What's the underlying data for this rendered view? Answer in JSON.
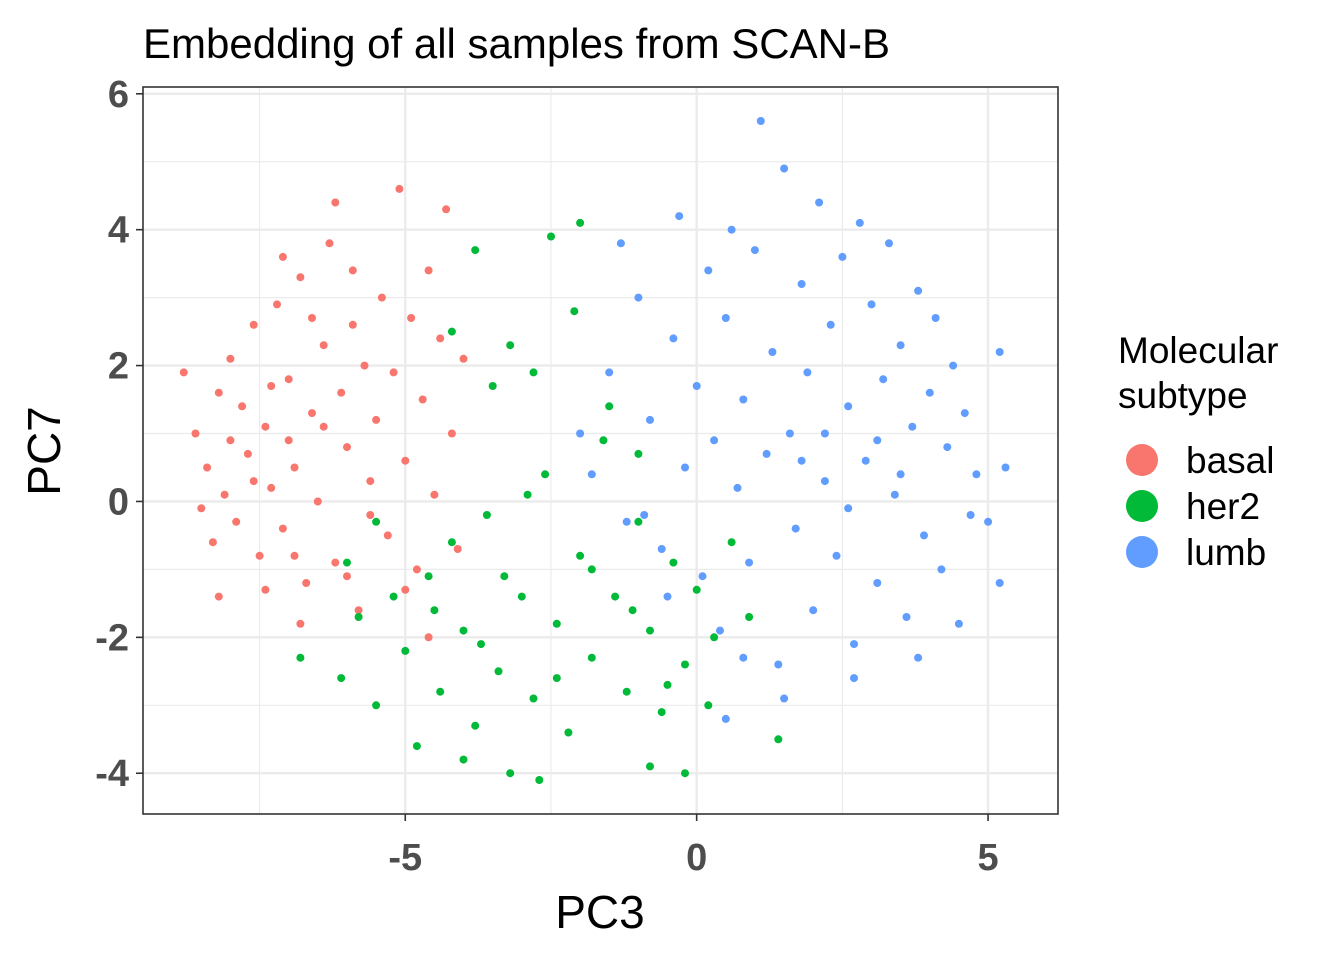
{
  "chart_data": {
    "type": "scatter",
    "title": "Embedding of all samples from SCAN-B",
    "xlabel": "PC3",
    "ylabel": "PC7",
    "xlim": [
      -9.5,
      6.2
    ],
    "ylim": [
      -4.6,
      6.1
    ],
    "x_ticks": [
      -5,
      0,
      5
    ],
    "x_tick_labels": [
      "-5",
      "0",
      "5"
    ],
    "y_ticks": [
      -4,
      -2,
      0,
      2,
      4,
      6
    ],
    "y_tick_labels": [
      "-4",
      "-2",
      "0",
      "2",
      "4",
      "6"
    ],
    "grid": true,
    "legend": {
      "title_lines": [
        "Molecular",
        "subtype"
      ],
      "placement": "right"
    },
    "series": [
      {
        "name": "basal",
        "color": "#F8766D",
        "points": [
          [
            -8.8,
            1.9
          ],
          [
            -8.6,
            1.0
          ],
          [
            -8.4,
            0.5
          ],
          [
            -8.3,
            -0.6
          ],
          [
            -8.2,
            1.6
          ],
          [
            -8.1,
            0.1
          ],
          [
            -8.0,
            2.1
          ],
          [
            -7.9,
            -0.3
          ],
          [
            -7.8,
            1.4
          ],
          [
            -7.7,
            0.7
          ],
          [
            -7.6,
            2.6
          ],
          [
            -7.5,
            -0.8
          ],
          [
            -7.4,
            1.1
          ],
          [
            -7.3,
            0.2
          ],
          [
            -7.2,
            2.9
          ],
          [
            -7.1,
            -0.4
          ],
          [
            -7.0,
            1.8
          ],
          [
            -6.9,
            0.5
          ],
          [
            -6.8,
            3.3
          ],
          [
            -6.7,
            -1.2
          ],
          [
            -6.6,
            1.3
          ],
          [
            -6.5,
            0.0
          ],
          [
            -6.4,
            2.3
          ],
          [
            -6.3,
            3.8
          ],
          [
            -6.2,
            -0.9
          ],
          [
            -6.1,
            1.6
          ],
          [
            -6.0,
            0.8
          ],
          [
            -5.9,
            3.4
          ],
          [
            -5.8,
            -1.6
          ],
          [
            -5.7,
            2.0
          ],
          [
            -5.6,
            0.3
          ],
          [
            -5.5,
            1.2
          ],
          [
            -5.4,
            3.0
          ],
          [
            -5.3,
            -0.5
          ],
          [
            -5.2,
            1.9
          ],
          [
            -5.1,
            4.6
          ],
          [
            -5.0,
            0.6
          ],
          [
            -4.9,
            2.7
          ],
          [
            -4.8,
            -1.0
          ],
          [
            -4.7,
            1.5
          ],
          [
            -4.6,
            3.4
          ],
          [
            -4.5,
            0.1
          ],
          [
            -4.4,
            2.4
          ],
          [
            -4.3,
            4.3
          ],
          [
            -4.2,
            1.0
          ],
          [
            -4.1,
            -0.7
          ],
          [
            -4.0,
            2.1
          ],
          [
            -7.6,
            0.3
          ],
          [
            -7.0,
            0.9
          ],
          [
            -6.6,
            2.7
          ],
          [
            -6.2,
            4.4
          ],
          [
            -5.9,
            2.6
          ],
          [
            -6.9,
            -0.8
          ],
          [
            -7.3,
            1.7
          ],
          [
            -8.0,
            0.9
          ],
          [
            -8.5,
            -0.1
          ],
          [
            -6.4,
            1.1
          ],
          [
            -5.6,
            -0.2
          ],
          [
            -5.0,
            -1.3
          ],
          [
            -4.6,
            -2.0
          ],
          [
            -6.8,
            -1.8
          ],
          [
            -7.1,
            3.6
          ],
          [
            -7.4,
            -1.3
          ],
          [
            -8.2,
            -1.4
          ],
          [
            -6.0,
            -1.1
          ]
        ]
      },
      {
        "name": "her2",
        "color": "#00BA38",
        "points": [
          [
            -6.8,
            -2.3
          ],
          [
            -6.1,
            -2.6
          ],
          [
            -5.8,
            -1.7
          ],
          [
            -5.5,
            -3.0
          ],
          [
            -5.2,
            -1.4
          ],
          [
            -5.0,
            -2.2
          ],
          [
            -4.8,
            -3.6
          ],
          [
            -4.6,
            -1.1
          ],
          [
            -4.4,
            -2.8
          ],
          [
            -4.2,
            -0.6
          ],
          [
            -4.0,
            -1.9
          ],
          [
            -3.8,
            -3.3
          ],
          [
            -3.6,
            -0.2
          ],
          [
            -3.4,
            -2.5
          ],
          [
            -3.2,
            -4.0
          ],
          [
            -3.0,
            -1.4
          ],
          [
            -2.8,
            -2.9
          ],
          [
            -2.6,
            0.4
          ],
          [
            -2.4,
            -1.8
          ],
          [
            -2.2,
            -3.4
          ],
          [
            -2.0,
            -0.8
          ],
          [
            -1.8,
            -2.3
          ],
          [
            -1.6,
            0.9
          ],
          [
            -1.4,
            -1.4
          ],
          [
            -1.2,
            -2.8
          ],
          [
            -1.0,
            -0.3
          ],
          [
            -0.8,
            -1.9
          ],
          [
            -0.6,
            -3.1
          ],
          [
            -0.4,
            -0.9
          ],
          [
            -0.2,
            -2.4
          ],
          [
            0.0,
            -1.3
          ],
          [
            0.3,
            -2.0
          ],
          [
            0.6,
            -0.6
          ],
          [
            0.9,
            -1.7
          ],
          [
            1.4,
            -3.5
          ],
          [
            -2.0,
            4.1
          ],
          [
            -2.5,
            3.9
          ],
          [
            -3.8,
            3.7
          ],
          [
            -4.2,
            2.5
          ],
          [
            -3.2,
            2.3
          ],
          [
            -2.8,
            1.9
          ],
          [
            -3.5,
            1.7
          ],
          [
            -2.1,
            2.8
          ],
          [
            -1.5,
            1.4
          ],
          [
            -1.0,
            0.7
          ],
          [
            -4.0,
            -3.8
          ],
          [
            -2.7,
            -4.1
          ],
          [
            -0.8,
            -3.9
          ],
          [
            -0.2,
            -4.0
          ],
          [
            -5.5,
            -0.3
          ],
          [
            -6.0,
            -0.9
          ],
          [
            -3.3,
            -1.1
          ],
          [
            -2.4,
            -2.6
          ],
          [
            -1.8,
            -1.0
          ],
          [
            -4.5,
            -1.6
          ],
          [
            -3.7,
            -2.1
          ],
          [
            -1.1,
            -1.6
          ],
          [
            -0.5,
            -2.7
          ],
          [
            0.2,
            -3.0
          ],
          [
            -2.9,
            0.1
          ]
        ]
      },
      {
        "name": "lumb",
        "color": "#619CFF",
        "points": [
          [
            -1.8,
            0.4
          ],
          [
            -1.5,
            1.9
          ],
          [
            -1.2,
            -0.3
          ],
          [
            -1.0,
            3.0
          ],
          [
            -0.8,
            1.2
          ],
          [
            -0.6,
            -0.7
          ],
          [
            -0.4,
            2.4
          ],
          [
            -0.3,
            4.2
          ],
          [
            -0.2,
            0.5
          ],
          [
            0.0,
            1.7
          ],
          [
            0.1,
            -1.1
          ],
          [
            0.2,
            3.4
          ],
          [
            0.3,
            0.9
          ],
          [
            0.4,
            -1.9
          ],
          [
            0.5,
            2.7
          ],
          [
            0.6,
            4.0
          ],
          [
            0.7,
            0.2
          ],
          [
            0.8,
            1.5
          ],
          [
            0.9,
            -0.9
          ],
          [
            1.0,
            3.7
          ],
          [
            1.1,
            5.6
          ],
          [
            1.2,
            0.7
          ],
          [
            1.3,
            2.2
          ],
          [
            1.4,
            -2.4
          ],
          [
            1.5,
            4.9
          ],
          [
            1.6,
            1.0
          ],
          [
            1.7,
            -0.4
          ],
          [
            1.8,
            3.2
          ],
          [
            1.9,
            1.9
          ],
          [
            2.0,
            -1.6
          ],
          [
            2.1,
            4.4
          ],
          [
            2.2,
            0.3
          ],
          [
            2.3,
            2.6
          ],
          [
            2.4,
            -0.8
          ],
          [
            2.5,
            3.6
          ],
          [
            2.6,
            1.4
          ],
          [
            2.7,
            -2.1
          ],
          [
            2.8,
            4.1
          ],
          [
            2.9,
            0.6
          ],
          [
            3.0,
            2.9
          ],
          [
            3.1,
            -1.2
          ],
          [
            3.2,
            1.8
          ],
          [
            3.3,
            3.8
          ],
          [
            3.4,
            0.1
          ],
          [
            3.5,
            2.3
          ],
          [
            3.6,
            -1.7
          ],
          [
            3.7,
            1.1
          ],
          [
            3.8,
            3.1
          ],
          [
            3.9,
            -0.5
          ],
          [
            4.0,
            1.6
          ],
          [
            4.1,
            2.7
          ],
          [
            4.2,
            -1.0
          ],
          [
            4.3,
            0.8
          ],
          [
            4.4,
            2.0
          ],
          [
            4.5,
            -1.8
          ],
          [
            4.6,
            1.3
          ],
          [
            4.7,
            -0.2
          ],
          [
            4.8,
            0.4
          ],
          [
            5.0,
            -0.3
          ],
          [
            5.2,
            2.2
          ],
          [
            5.3,
            0.5
          ],
          [
            5.2,
            -1.2
          ],
          [
            3.8,
            -2.3
          ],
          [
            -0.9,
            -0.2
          ],
          [
            0.5,
            -3.2
          ],
          [
            1.5,
            -2.9
          ],
          [
            2.7,
            -2.6
          ],
          [
            -2.0,
            1.0
          ],
          [
            -1.3,
            3.8
          ],
          [
            -0.5,
            -1.4
          ],
          [
            0.8,
            -2.3
          ],
          [
            2.2,
            1.0
          ],
          [
            3.1,
            0.9
          ],
          [
            1.8,
            0.6
          ],
          [
            2.6,
            -0.1
          ],
          [
            3.5,
            0.4
          ]
        ]
      }
    ]
  }
}
